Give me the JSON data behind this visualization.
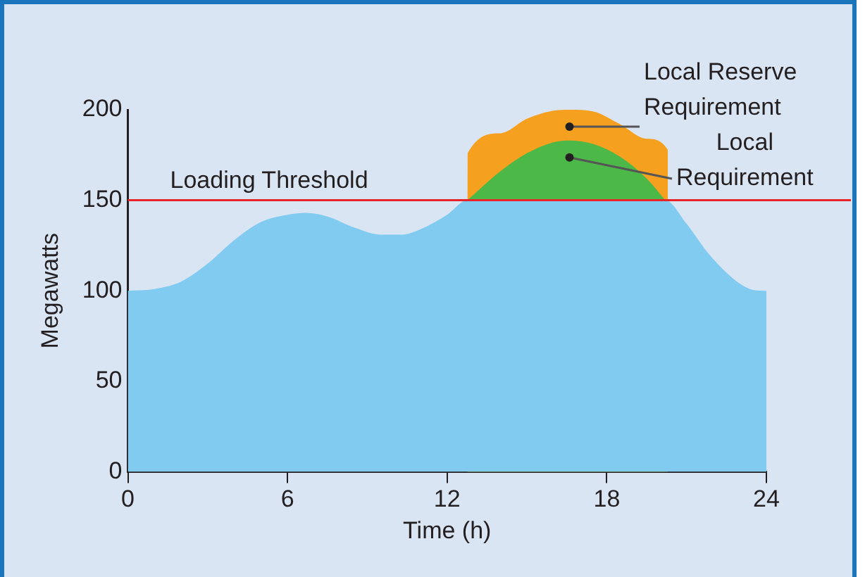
{
  "chart_data": {
    "type": "area",
    "xlabel": "Time (h)",
    "ylabel": "Megawatts",
    "xlim": [
      0,
      24
    ],
    "xticks": [
      0,
      6,
      12,
      18,
      24
    ],
    "ylim": [
      0,
      200
    ],
    "yticks": [
      0,
      50,
      100,
      150,
      200
    ],
    "grid": false,
    "legend": false,
    "marker": "none",
    "series": [
      {
        "color": "#82cbf0",
        "x": [
          0,
          1,
          2,
          3,
          4,
          5,
          6,
          6.7,
          7.5,
          8.5,
          9.5,
          10.3,
          11,
          12,
          12.76,
          16,
          20.2,
          21,
          21.8,
          22.5,
          23,
          23.5,
          24
        ],
        "values": [
          100,
          101,
          105,
          115,
          128,
          138,
          142,
          143,
          141,
          135,
          131,
          131,
          134,
          142,
          150,
          150,
          150,
          137,
          121,
          110,
          104,
          100.5,
          100
        ]
      },
      {
        "name": "Local Requirement",
        "color": "#4cb848",
        "x": [
          12.76,
          14,
          15,
          16,
          16.6,
          17.5,
          18.5,
          19.5,
          20.2
        ],
        "values": [
          150,
          166,
          176,
          182,
          183,
          181,
          174,
          162,
          150
        ]
      },
      {
        "name": "Local Reserve Requirement",
        "color": "#f5a01f",
        "x": [
          12.76,
          12.77,
          14,
          15,
          16,
          16.6,
          17.5,
          18.5,
          19.5,
          20.29,
          20.3
        ],
        "values": [
          150,
          176,
          187,
          195,
          199.5,
          200,
          199,
          192,
          184,
          178,
          150
        ]
      }
    ],
    "ref_lines": [
      {
        "axis": "y",
        "value": 150,
        "label": "Loading Threshold",
        "color": "#e8232a"
      }
    ]
  }
}
